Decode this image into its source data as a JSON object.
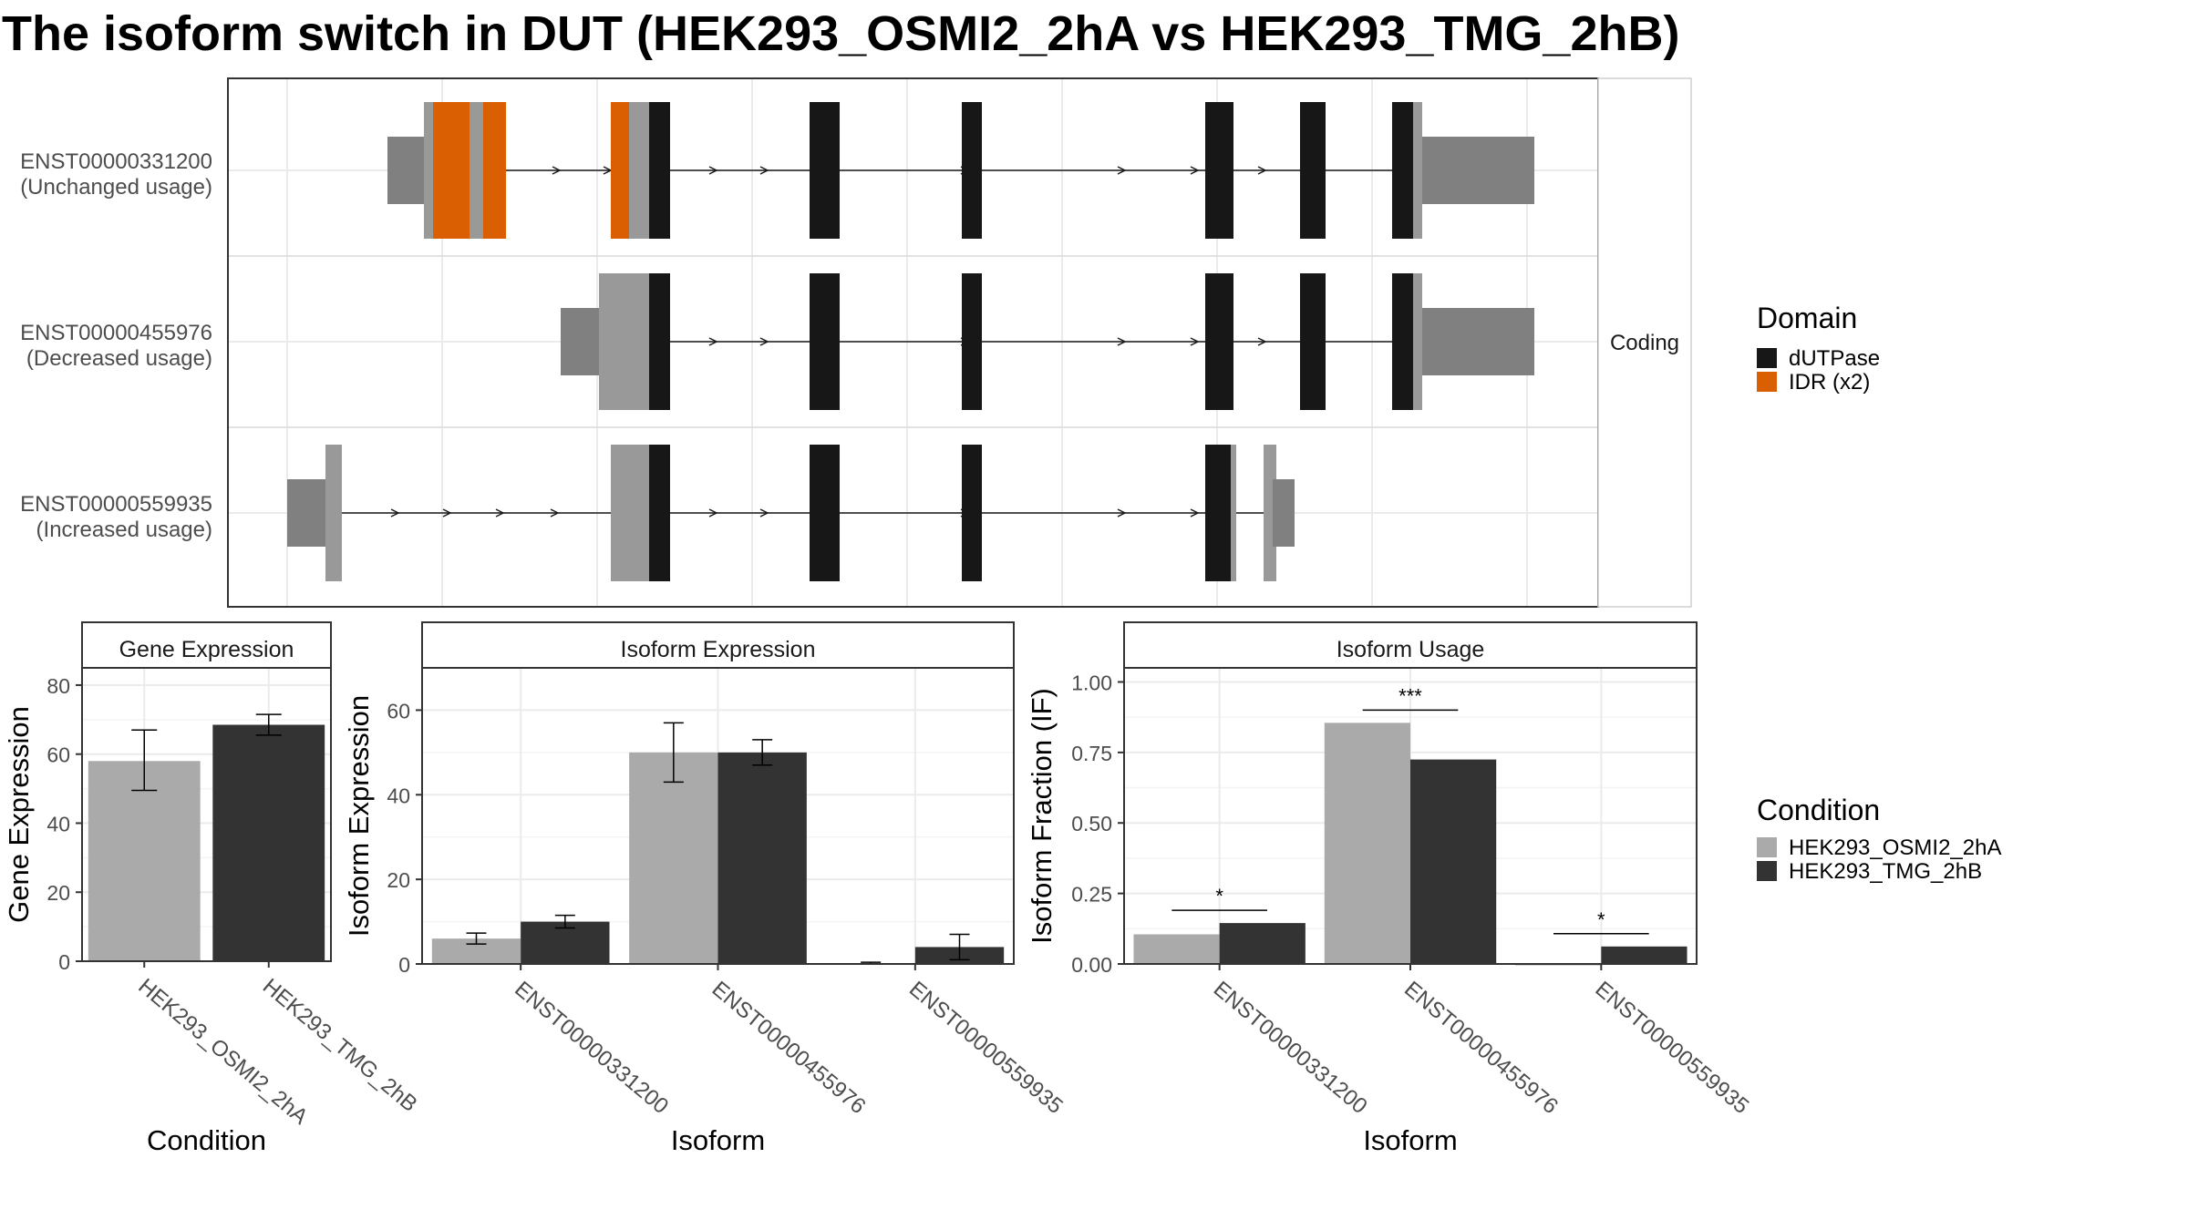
{
  "title": "The isoform switch in DUT (HEK293_OSMI2_2hA vs HEK293_TMG_2hB)",
  "colors": {
    "utr": "#808080",
    "coding": "#999999",
    "dUTPase": "#171717",
    "IDR": "#D95F02",
    "condA": "#AAAAAA",
    "condB": "#333333",
    "grid": "#EBEBEB",
    "panel_border": "#333333"
  },
  "chart_data": [
    {
      "type": "gene-structure",
      "strip_label": "Coding",
      "legend": {
        "title": "Domain",
        "entries": [
          {
            "label": "dUTPase",
            "color": "#171717"
          },
          {
            "label": "IDR (x2)",
            "color": "#D95F02"
          }
        ]
      },
      "isoforms": [
        {
          "id": "ENST00000331200",
          "usage_label": "(Unchanged usage)"
        },
        {
          "id": "ENST00000455976",
          "usage_label": "(Decreased usage)"
        },
        {
          "id": "ENST00000559935",
          "usage_label": "(Increased usage)"
        }
      ]
    },
    {
      "type": "bar",
      "strip_title": "Gene Expression",
      "xlabel": "Condition",
      "ylabel": "Gene Expression",
      "categories": [
        "HEK293_OSMI2_2hA",
        "HEK293_TMG_2hB"
      ],
      "values": [
        58,
        68.5
      ],
      "errors": [
        [
          49.5,
          67
        ],
        [
          65.5,
          71.5
        ]
      ],
      "yticks": [
        0,
        20,
        40,
        60,
        80
      ],
      "ylim": [
        0,
        85
      ]
    },
    {
      "type": "bar",
      "strip_title": "Isoform Expression",
      "xlabel": "Isoform",
      "ylabel": "Isoform Expression",
      "categories": [
        "ENST00000331200",
        "ENST00000455976",
        "ENST00000559935"
      ],
      "series": [
        {
          "name": "HEK293_OSMI2_2hA",
          "values": [
            6,
            50,
            0.2
          ],
          "errors": [
            [
              4.7,
              7.3
            ],
            [
              43,
              57
            ],
            [
              0,
              0.4
            ]
          ]
        },
        {
          "name": "HEK293_TMG_2hB",
          "values": [
            10,
            50,
            4
          ],
          "errors": [
            [
              8.5,
              11.5
            ],
            [
              47,
              53
            ],
            [
              1,
              7
            ]
          ]
        }
      ],
      "yticks": [
        0,
        20,
        40,
        60
      ],
      "ylim": [
        0,
        70
      ]
    },
    {
      "type": "bar",
      "strip_title": "Isoform Usage",
      "xlabel": "Isoform",
      "ylabel": "Isoform Fraction (IF)",
      "categories": [
        "ENST00000331200",
        "ENST00000455976",
        "ENST00000559935"
      ],
      "series": [
        {
          "name": "HEK293_OSMI2_2hA",
          "values": [
            0.105,
            0.855,
            0.0
          ]
        },
        {
          "name": "HEK293_TMG_2hB",
          "values": [
            0.145,
            0.725,
            0.062
          ]
        }
      ],
      "significance": [
        "*",
        "***",
        "*"
      ],
      "yticks": [
        "0.00",
        "0.25",
        "0.50",
        "0.75",
        "1.00"
      ],
      "ylim": [
        0,
        1.05
      ]
    }
  ],
  "condition_legend": {
    "title": "Condition",
    "entries": [
      {
        "label": "HEK293_OSMI2_2hA",
        "color": "#AAAAAA"
      },
      {
        "label": "HEK293_TMG_2hB",
        "color": "#333333"
      }
    ]
  }
}
